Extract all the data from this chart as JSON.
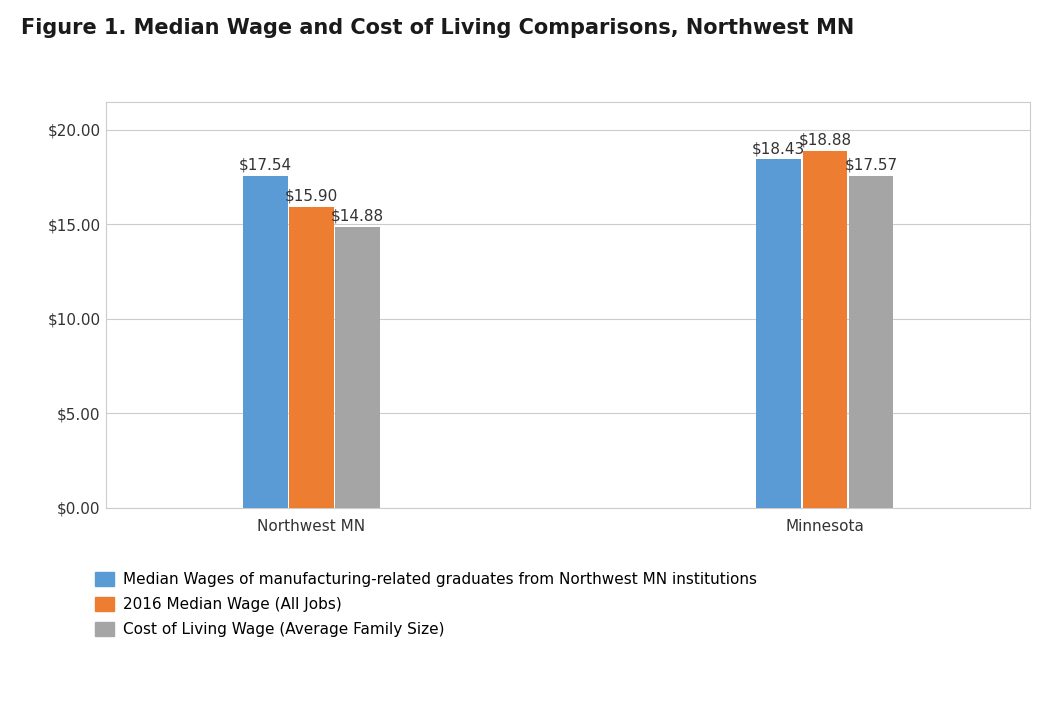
{
  "title": "Figure 1. Median Wage and Cost of Living Comparisons, Northwest MN",
  "groups": [
    "Northwest MN",
    "Minnesota"
  ],
  "series": [
    {
      "label": "Median Wages of manufacturing-related graduates from Northwest MN institutions",
      "color": "#5B9BD5",
      "values": [
        17.54,
        18.43
      ]
    },
    {
      "label": "2016 Median Wage (All Jobs)",
      "color": "#ED7D31",
      "values": [
        15.9,
        18.88
      ]
    },
    {
      "label": "Cost of Living Wage (Average Family Size)",
      "color": "#A5A5A5",
      "values": [
        14.88,
        17.57
      ]
    }
  ],
  "ylim": [
    0,
    21.5
  ],
  "yticks": [
    0,
    5.0,
    10.0,
    15.0,
    20.0
  ],
  "ytick_labels": [
    "$0.00",
    "$5.00",
    "$10.00",
    "$15.00",
    "$20.00"
  ],
  "bar_width": 0.13,
  "bar_spacing": 0.005,
  "group_centers": [
    1.0,
    2.5
  ],
  "xlim": [
    0.4,
    3.1
  ],
  "title_fontsize": 15,
  "tick_fontsize": 11,
  "legend_fontsize": 11,
  "annotation_fontsize": 11,
  "background_color": "#FFFFFF",
  "plot_bg_color": "#FFFFFF",
  "grid_color": "#CCCCCC",
  "border_color": "#CCCCCC",
  "text_color": "#333333"
}
